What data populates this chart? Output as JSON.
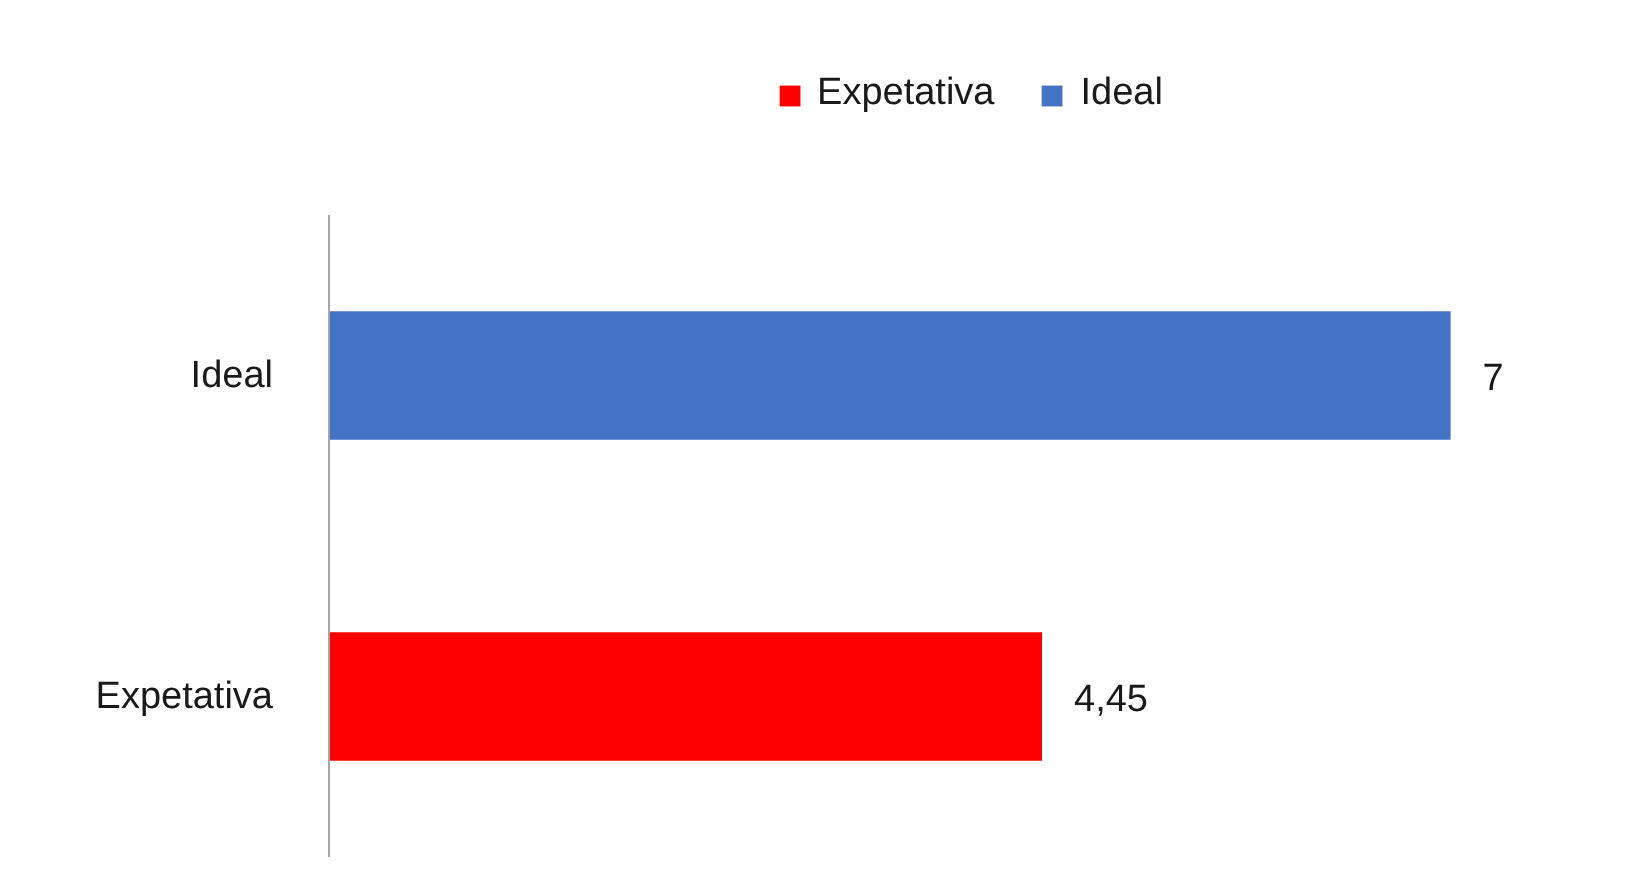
{
  "chart_data": {
    "type": "bar",
    "orientation": "horizontal",
    "categories": [
      "Ideal",
      "Expetativa"
    ],
    "series": [
      {
        "name": "Expetativa",
        "color": "#ff0000",
        "values": [
          null,
          4.45
        ],
        "value_labels": [
          null,
          "4,45"
        ]
      },
      {
        "name": "Ideal",
        "color": "#4472c4",
        "values": [
          7,
          null
        ],
        "value_labels": [
          "7",
          null
        ]
      }
    ],
    "legend": "top",
    "tick_labels": "y"
  }
}
